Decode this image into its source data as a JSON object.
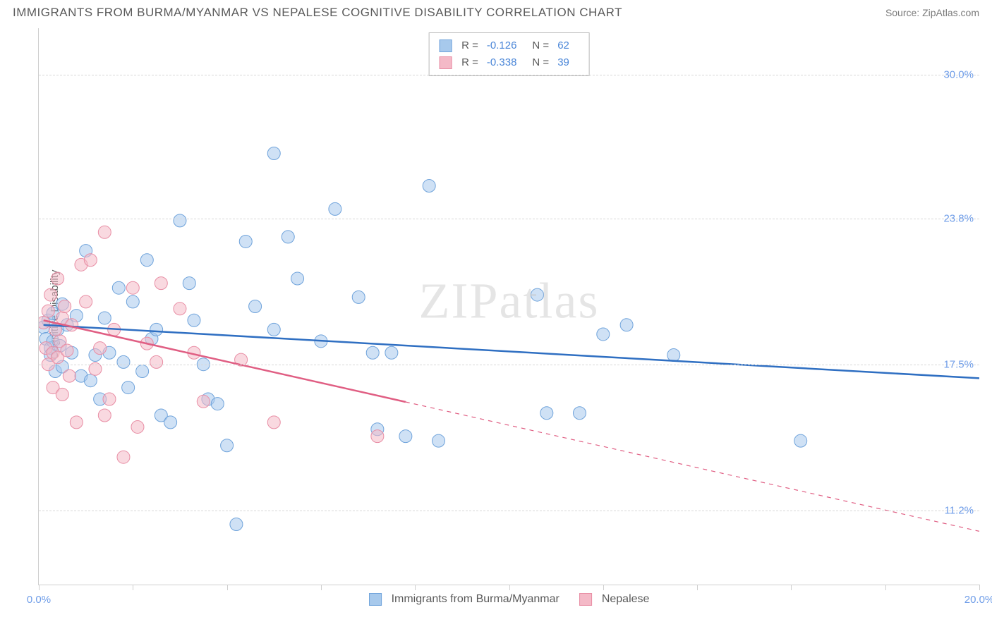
{
  "title": "IMMIGRANTS FROM BURMA/MYANMAR VS NEPALESE COGNITIVE DISABILITY CORRELATION CHART",
  "source": "Source: ZipAtlas.com",
  "ylabel": "Cognitive Disability",
  "watermark": "ZIPatlas",
  "chart": {
    "type": "scatter",
    "background_color": "#ffffff",
    "grid_color": "#d8d8d8",
    "border_color": "#cfcfcf",
    "xlim": [
      0,
      20
    ],
    "ylim": [
      8,
      32
    ],
    "y_ticks": [
      {
        "v": 30.0,
        "label": "30.0%"
      },
      {
        "v": 23.8,
        "label": "23.8%"
      },
      {
        "v": 17.5,
        "label": "17.5%"
      },
      {
        "v": 11.2,
        "label": "11.2%"
      }
    ],
    "x_ticks": [
      0,
      2,
      4,
      6,
      8,
      10,
      12,
      14,
      16,
      18,
      20
    ],
    "x_tick_labels": [
      {
        "v": 0,
        "label": "0.0%"
      },
      {
        "v": 20,
        "label": "20.0%"
      }
    ],
    "marker_radius": 9,
    "marker_opacity": 0.55,
    "line_width_solid": 2.5,
    "line_width_dash": 1.2,
    "label_fontsize": 15,
    "label_color": "#6f9de8",
    "series": [
      {
        "name": "Immigrants from Burma/Myanmar",
        "color_fill": "#a7c9ec",
        "color_stroke": "#6fa3db",
        "line_color": "#2f6fc2",
        "R": "-0.126",
        "N": "62",
        "reg_line": {
          "x1": 0.1,
          "y1": 19.2,
          "x2": 20,
          "y2": 16.9,
          "solid_until_x": 20
        },
        "points": [
          [
            0.1,
            19.1
          ],
          [
            0.15,
            18.6
          ],
          [
            0.2,
            19.4
          ],
          [
            0.25,
            18.2
          ],
          [
            0.25,
            17.9
          ],
          [
            0.3,
            19.7
          ],
          [
            0.3,
            18.5
          ],
          [
            0.35,
            17.2
          ],
          [
            0.4,
            19.0
          ],
          [
            0.45,
            18.3
          ],
          [
            0.5,
            20.1
          ],
          [
            0.5,
            17.4
          ],
          [
            0.6,
            19.2
          ],
          [
            0.7,
            18.0
          ],
          [
            0.8,
            19.6
          ],
          [
            0.9,
            17.0
          ],
          [
            1.0,
            22.4
          ],
          [
            1.1,
            16.8
          ],
          [
            1.2,
            17.9
          ],
          [
            1.3,
            16.0
          ],
          [
            1.4,
            19.5
          ],
          [
            1.5,
            18.0
          ],
          [
            1.7,
            20.8
          ],
          [
            1.8,
            17.6
          ],
          [
            1.9,
            16.5
          ],
          [
            2.0,
            20.2
          ],
          [
            2.2,
            17.2
          ],
          [
            2.3,
            22.0
          ],
          [
            2.4,
            18.6
          ],
          [
            2.6,
            15.3
          ],
          [
            2.8,
            15.0
          ],
          [
            3.0,
            23.7
          ],
          [
            3.2,
            21.0
          ],
          [
            3.3,
            19.4
          ],
          [
            3.5,
            17.5
          ],
          [
            3.6,
            16.0
          ],
          [
            3.8,
            15.8
          ],
          [
            4.0,
            14.0
          ],
          [
            4.2,
            10.6
          ],
          [
            4.4,
            22.8
          ],
          [
            4.6,
            20.0
          ],
          [
            5.0,
            19.0
          ],
          [
            5.3,
            23.0
          ],
          [
            5.5,
            21.2
          ],
          [
            6.0,
            18.5
          ],
          [
            6.3,
            24.2
          ],
          [
            6.8,
            20.4
          ],
          [
            7.1,
            18.0
          ],
          [
            7.2,
            14.7
          ],
          [
            7.5,
            18.0
          ],
          [
            7.8,
            14.4
          ],
          [
            8.3,
            25.2
          ],
          [
            8.5,
            14.2
          ],
          [
            10.6,
            20.5
          ],
          [
            10.8,
            15.4
          ],
          [
            11.5,
            15.4
          ],
          [
            12.0,
            18.8
          ],
          [
            12.5,
            19.2
          ],
          [
            13.5,
            17.9
          ],
          [
            16.2,
            14.2
          ],
          [
            5.0,
            26.6
          ],
          [
            2.5,
            19.0
          ]
        ]
      },
      {
        "name": "Nepalese",
        "color_fill": "#f4b9c7",
        "color_stroke": "#e88da4",
        "line_color": "#e05e83",
        "R": "-0.338",
        "N": "39",
        "reg_line": {
          "x1": 0.1,
          "y1": 19.4,
          "x2": 20,
          "y2": 10.3,
          "solid_until_x": 7.8
        },
        "points": [
          [
            0.1,
            19.3
          ],
          [
            0.15,
            18.2
          ],
          [
            0.2,
            19.8
          ],
          [
            0.2,
            17.5
          ],
          [
            0.25,
            20.5
          ],
          [
            0.3,
            18.0
          ],
          [
            0.3,
            16.5
          ],
          [
            0.35,
            19.0
          ],
          [
            0.4,
            17.8
          ],
          [
            0.4,
            21.2
          ],
          [
            0.45,
            18.5
          ],
          [
            0.5,
            19.5
          ],
          [
            0.5,
            16.2
          ],
          [
            0.55,
            20.0
          ],
          [
            0.6,
            18.1
          ],
          [
            0.65,
            17.0
          ],
          [
            0.7,
            19.2
          ],
          [
            0.8,
            15.0
          ],
          [
            0.9,
            21.8
          ],
          [
            1.0,
            20.2
          ],
          [
            1.1,
            22.0
          ],
          [
            1.2,
            17.3
          ],
          [
            1.3,
            18.2
          ],
          [
            1.4,
            15.3
          ],
          [
            1.4,
            23.2
          ],
          [
            1.5,
            16.0
          ],
          [
            1.6,
            19.0
          ],
          [
            1.8,
            13.5
          ],
          [
            2.0,
            20.8
          ],
          [
            2.1,
            14.8
          ],
          [
            2.3,
            18.4
          ],
          [
            2.5,
            17.6
          ],
          [
            2.6,
            21.0
          ],
          [
            3.0,
            19.9
          ],
          [
            3.3,
            18.0
          ],
          [
            3.5,
            15.9
          ],
          [
            4.3,
            17.7
          ],
          [
            5.0,
            15.0
          ],
          [
            7.2,
            14.4
          ]
        ]
      }
    ]
  },
  "legend_bottom": [
    {
      "label": "Immigrants from Burma/Myanmar",
      "fill": "#a7c9ec",
      "stroke": "#6fa3db"
    },
    {
      "label": "Nepalese",
      "fill": "#f4b9c7",
      "stroke": "#e88da4"
    }
  ]
}
